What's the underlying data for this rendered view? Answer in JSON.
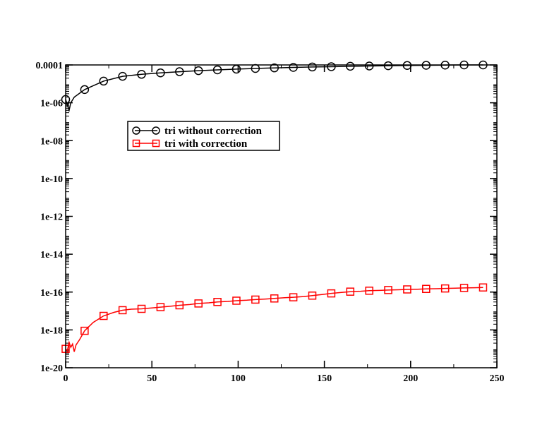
{
  "chart_data": {
    "type": "line",
    "title": "",
    "xlabel": "",
    "ylabel": "",
    "xlim": [
      0,
      250
    ],
    "ylim": [
      1e-20,
      0.0001
    ],
    "y_scale": "log",
    "grid": false,
    "legend_position": "upper-left-inside",
    "x_ticks": [
      0,
      50,
      100,
      150,
      200,
      250
    ],
    "x_tick_labels": [
      "0",
      "50",
      "100",
      "150",
      "200",
      "250"
    ],
    "y_ticks": [
      1e-20,
      1e-18,
      1e-16,
      1e-14,
      1e-12,
      1e-10,
      1e-08,
      1e-06,
      0.0001
    ],
    "y_tick_labels": [
      "1e-20",
      "1e-18",
      "1e-16",
      "1e-14",
      "1e-12",
      "1e-10",
      "1e-08",
      "1e-06",
      "0.0001"
    ],
    "series": [
      {
        "name": "tri without correction",
        "color": "#000000",
        "marker": "circle",
        "x": [
          0,
          1,
          2,
          3,
          5,
          11,
          22,
          33,
          44,
          55,
          66,
          77,
          88,
          99,
          110,
          121,
          132,
          143,
          154,
          165,
          176,
          187,
          198,
          209,
          220,
          231,
          242
        ],
        "y": [
          1.5e-06,
          8e-07,
          4e-07,
          1e-06,
          2e-06,
          5e-06,
          1.4e-05,
          2.5e-05,
          3.2e-05,
          3.8e-05,
          4.4e-05,
          5e-05,
          5.5e-05,
          6e-05,
          6.5e-05,
          7e-05,
          7.4e-05,
          7.8e-05,
          8.1e-05,
          8.5e-05,
          8.8e-05,
          9.1e-05,
          9.4e-05,
          9.6e-05,
          9.8e-05,
          0.0001,
          0.0001
        ],
        "marker_x": [
          0,
          11,
          22,
          33,
          44,
          55,
          66,
          77,
          88,
          99,
          110,
          121,
          132,
          143,
          154,
          165,
          176,
          187,
          198,
          209,
          220,
          231,
          242
        ],
        "marker_y": [
          1.5e-06,
          5e-06,
          1.4e-05,
          2.5e-05,
          3.2e-05,
          3.8e-05,
          4.4e-05,
          5e-05,
          5.5e-05,
          6e-05,
          6.5e-05,
          7e-05,
          7.4e-05,
          7.8e-05,
          8.1e-05,
          8.5e-05,
          8.8e-05,
          9.1e-05,
          9.4e-05,
          9.6e-05,
          9.8e-05,
          0.0001,
          0.0001
        ]
      },
      {
        "name": "tri with correction",
        "color": "#ff0000",
        "marker": "square",
        "x": [
          0,
          1,
          2,
          3,
          4,
          5,
          6,
          8,
          11,
          16,
          22,
          28,
          33,
          38,
          44,
          50,
          55,
          60,
          66,
          72,
          77,
          83,
          88,
          94,
          99,
          105,
          110,
          116,
          121,
          127,
          132,
          138,
          143,
          149,
          154,
          160,
          165,
          171,
          176,
          182,
          187,
          193,
          198,
          204,
          209,
          215,
          220,
          226,
          231,
          237,
          242
        ],
        "y": [
          1e-19,
          8e-20,
          2.2e-19,
          1.2e-19,
          1.8e-19,
          7e-20,
          1.6e-19,
          3e-19,
          9e-19,
          2.5e-18,
          5.5e-18,
          8.5e-18,
          1.1e-17,
          1.25e-17,
          1.3e-17,
          1.45e-17,
          1.6e-17,
          1.75e-17,
          2e-17,
          2.2e-17,
          2.5e-17,
          2.7e-17,
          3e-17,
          3.2e-17,
          3.5e-17,
          3.7e-17,
          4e-17,
          4.3e-17,
          4.6e-17,
          5e-17,
          5.3e-17,
          5.8e-17,
          6.5e-17,
          7.5e-17,
          8.5e-17,
          9.5e-17,
          1.05e-16,
          1.1e-16,
          1.18e-16,
          1.22e-16,
          1.28e-16,
          1.32e-16,
          1.38e-16,
          1.42e-16,
          1.47e-16,
          1.5e-16,
          1.55e-16,
          1.6e-16,
          1.65e-16,
          1.7e-16,
          1.75e-16
        ],
        "marker_x": [
          0,
          11,
          22,
          33,
          44,
          55,
          66,
          77,
          88,
          99,
          110,
          121,
          132,
          143,
          154,
          165,
          176,
          187,
          198,
          209,
          220,
          231,
          242
        ],
        "marker_y": [
          1e-19,
          9e-19,
          5.5e-18,
          1.1e-17,
          1.3e-17,
          1.6e-17,
          2e-17,
          2.5e-17,
          3e-17,
          3.5e-17,
          4e-17,
          4.6e-17,
          5.3e-17,
          6.5e-17,
          8.5e-17,
          1.05e-16,
          1.18e-16,
          1.28e-16,
          1.38e-16,
          1.47e-16,
          1.55e-16,
          1.65e-16,
          1.75e-16
        ]
      }
    ]
  }
}
